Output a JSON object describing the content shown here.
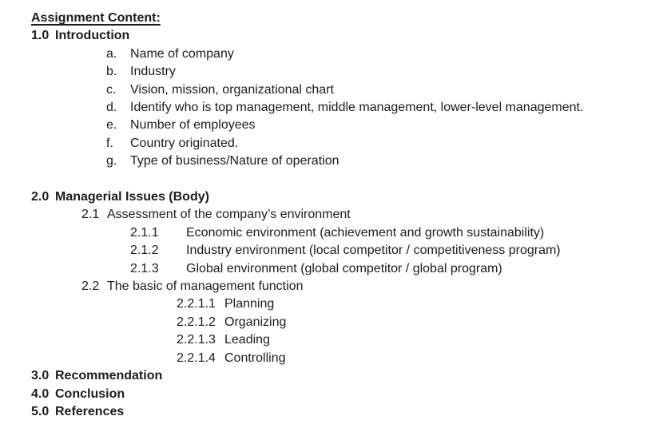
{
  "page": {
    "background": "#ffffff",
    "text_color": "#1c1c1c"
  },
  "document": {
    "title": "Assignment Content:",
    "outline": [
      {
        "level": "l1",
        "marker": "1.0",
        "text": "Introduction",
        "bold": true
      },
      {
        "level": "alpha",
        "marker": "a.",
        "text": "Name of company"
      },
      {
        "level": "alpha",
        "marker": "b.",
        "text": "Industry"
      },
      {
        "level": "alpha",
        "marker": "c.",
        "text": "Vision, mission, organizational chart"
      },
      {
        "level": "alpha",
        "marker": "d.",
        "text": "Identify who is top management, middle management, lower-level management."
      },
      {
        "level": "alpha",
        "marker": "e.",
        "text": "Number of employees"
      },
      {
        "level": "alpha",
        "marker": "f.",
        "text": "Country originated."
      },
      {
        "level": "alpha",
        "marker": "g.",
        "text": "Type of business/Nature of operation"
      },
      {
        "level": "l1",
        "marker": "2.0",
        "text": "Managerial Issues (Body)",
        "bold": true,
        "gap_before": true
      },
      {
        "level": "l2",
        "marker": "2.1",
        "text": "Assessment of the company’s environment"
      },
      {
        "level": "l3",
        "marker": "2.1.1",
        "text": "Economic environment (achievement and growth sustainability)"
      },
      {
        "level": "l3",
        "marker": "2.1.2",
        "text": "Industry environment (local competitor / competitiveness program)"
      },
      {
        "level": "l3",
        "marker": "2.1.3",
        "text": "Global environment (global competitor / global program)"
      },
      {
        "level": "l2",
        "marker": "2.2",
        "text": "The basic of management function"
      },
      {
        "level": "l4",
        "marker": "2.2.1.1",
        "text": "Planning"
      },
      {
        "level": "l4",
        "marker": "2.2.1.2",
        "text": "Organizing"
      },
      {
        "level": "l4",
        "marker": "2.2.1.3",
        "text": "Leading"
      },
      {
        "level": "l4",
        "marker": "2.2.1.4",
        "text": "Controlling"
      },
      {
        "level": "l1",
        "marker": "3.0",
        "text": "Recommendation",
        "bold": true
      },
      {
        "level": "l1",
        "marker": "4.0",
        "text": "Conclusion",
        "bold": true
      },
      {
        "level": "l1",
        "marker": "5.0",
        "text": "References",
        "bold": true
      }
    ]
  }
}
